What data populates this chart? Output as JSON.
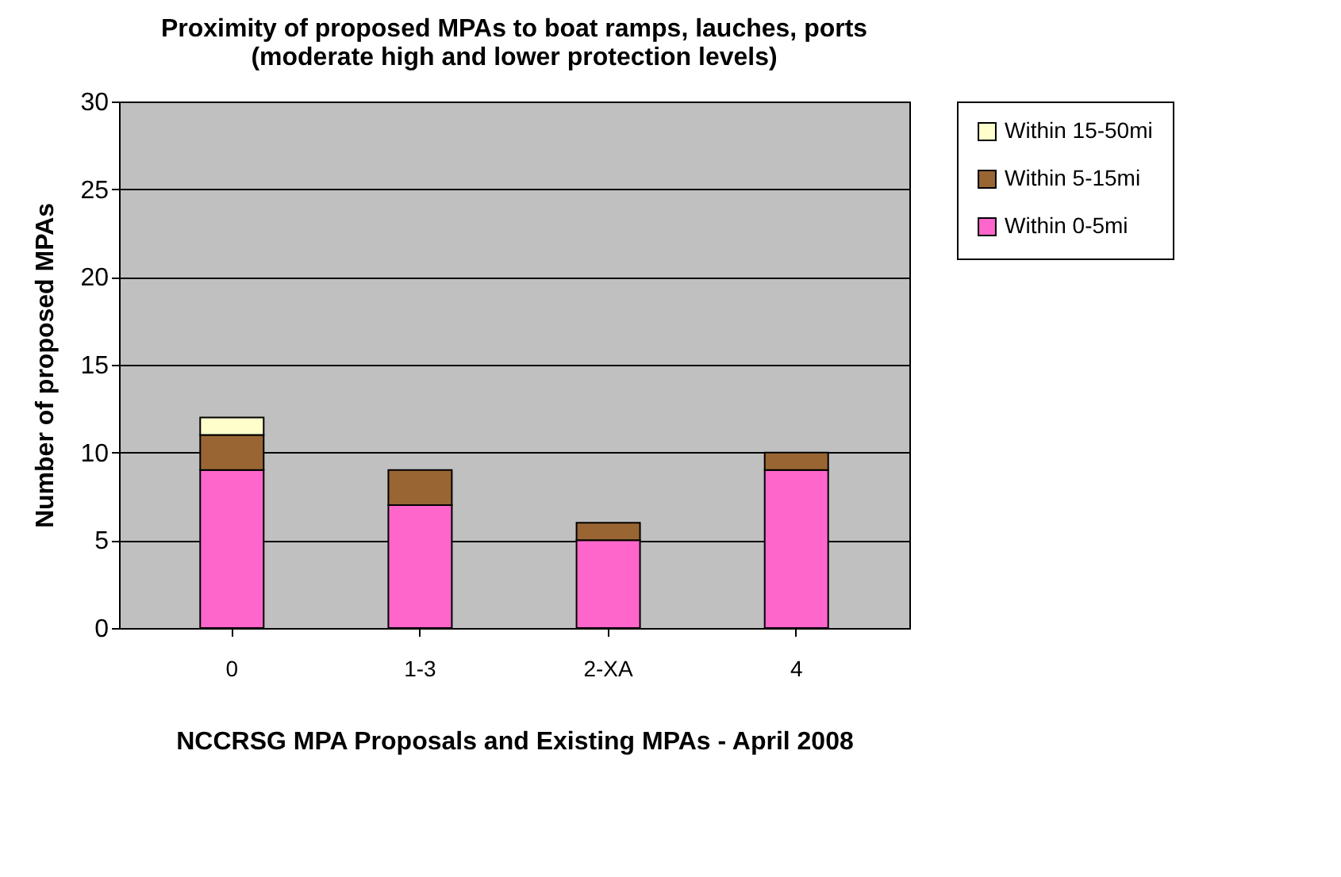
{
  "chart_data": {
    "type": "bar",
    "title": "Proximity of proposed MPAs to boat ramps, lauches, ports",
    "subtitle": "(moderate high and lower protection levels)",
    "xlabel": "NCCRSG MPA Proposals and Existing MPAs - April 2008",
    "ylabel": "Number of proposed MPAs",
    "categories": [
      "0",
      "1-3",
      "2-XA",
      "4"
    ],
    "stacked": true,
    "series": [
      {
        "name": "Within 0-5mi",
        "color": "#ff66cc",
        "values": [
          9,
          7,
          5,
          9
        ]
      },
      {
        "name": "Within 5-15mi",
        "color": "#996633",
        "values": [
          2,
          2,
          1,
          1
        ]
      },
      {
        "name": "Within 15-50mi",
        "color": "#ffffcc",
        "values": [
          1,
          0,
          0,
          0
        ]
      }
    ],
    "ylim": [
      0,
      30
    ],
    "yticks": [
      0,
      5,
      10,
      15,
      20,
      25,
      30
    ],
    "grid": "y",
    "legend": "right"
  }
}
